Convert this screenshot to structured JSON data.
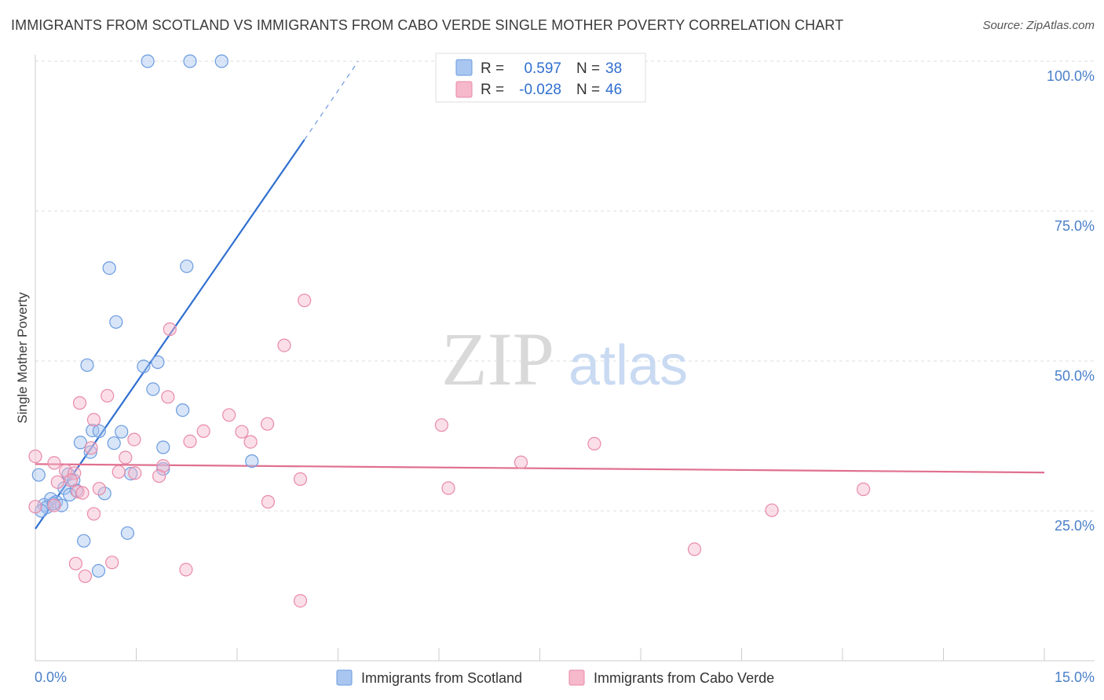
{
  "title": "IMMIGRANTS FROM SCOTLAND VS IMMIGRANTS FROM CABO VERDE SINGLE MOTHER POVERTY CORRELATION CHART",
  "source": "Source: ZipAtlas.com",
  "watermark": {
    "zip": "ZIP",
    "atlas": "atlas"
  },
  "legend": {
    "r_label": "R =",
    "n_label": "N =",
    "rows": [
      {
        "r": "0.597",
        "n": "38",
        "color": "#a9c6f0"
      },
      {
        "r": "-0.028",
        "n": "46",
        "color": "#f6b8cb"
      }
    ]
  },
  "chart_data": {
    "type": "scatter",
    "ylabel": "Single Mother Poverty",
    "xlabel": "",
    "xlim": [
      0,
      15
    ],
    "ylim": [
      0,
      104
    ],
    "x_tick_labels": {
      "left": "0.0%",
      "right": "15.0%"
    },
    "y_ticks": [
      {
        "value": 25,
        "label": "25.0%"
      },
      {
        "value": 50,
        "label": "50.0%"
      },
      {
        "value": 75,
        "label": "75.0%"
      },
      {
        "value": 100,
        "label": "100.0%"
      }
    ],
    "grid": true,
    "legend_position": "top-center",
    "series": [
      {
        "name": "Immigrants from Scotland",
        "color": "#a9c6f0",
        "stroke": "#6a9be0",
        "trend_color": "#2f6fd0",
        "trend": {
          "x0": 0.0,
          "y0": 22.0,
          "x1": 4.0,
          "y1": 86.9,
          "dash_to_x": 4.8,
          "dash_to_y": 100
        },
        "points": [
          [
            1.67,
            100
          ],
          [
            2.3,
            100
          ],
          [
            2.77,
            100
          ],
          [
            1.1,
            65.5
          ],
          [
            2.25,
            65.8
          ],
          [
            1.2,
            56.5
          ],
          [
            0.77,
            49.3
          ],
          [
            1.61,
            49.1
          ],
          [
            1.82,
            49.8
          ],
          [
            1.75,
            45.3
          ],
          [
            2.19,
            41.8
          ],
          [
            0.85,
            38.4
          ],
          [
            0.95,
            38.3
          ],
          [
            1.28,
            38.2
          ],
          [
            0.67,
            36.4
          ],
          [
            1.17,
            36.3
          ],
          [
            1.9,
            35.6
          ],
          [
            0.82,
            34.8
          ],
          [
            3.22,
            33.3
          ],
          [
            1.9,
            32.0
          ],
          [
            1.42,
            31.2
          ],
          [
            0.49,
            31.1
          ],
          [
            0.57,
            30.1
          ],
          [
            0.43,
            28.8
          ],
          [
            0.61,
            28.4
          ],
          [
            0.51,
            27.7
          ],
          [
            1.03,
            27.9
          ],
          [
            0.23,
            27.0
          ],
          [
            0.31,
            26.5
          ],
          [
            0.13,
            26.0
          ],
          [
            0.17,
            25.6
          ],
          [
            0.39,
            25.9
          ],
          [
            0.09,
            25.0
          ],
          [
            0.72,
            20.0
          ],
          [
            1.37,
            21.3
          ],
          [
            0.94,
            15.0
          ],
          [
            0.05,
            31.0
          ],
          [
            0.27,
            26.2
          ]
        ]
      },
      {
        "name": "Immigrants from Cabo Verde",
        "color": "#f6b8cb",
        "stroke": "#e889a8",
        "trend_color": "#e0708f",
        "trend": {
          "x0": 0.0,
          "y0": 32.8,
          "x1": 15.0,
          "y1": 31.4
        },
        "points": [
          [
            4.0,
            60.1
          ],
          [
            2.0,
            55.3
          ],
          [
            3.7,
            52.6
          ],
          [
            1.07,
            44.2
          ],
          [
            0.66,
            43.0
          ],
          [
            1.97,
            44.0
          ],
          [
            0.87,
            40.2
          ],
          [
            2.88,
            41.0
          ],
          [
            3.45,
            39.5
          ],
          [
            6.04,
            39.3
          ],
          [
            2.5,
            38.3
          ],
          [
            3.07,
            38.2
          ],
          [
            1.47,
            36.9
          ],
          [
            2.3,
            36.6
          ],
          [
            3.2,
            36.5
          ],
          [
            8.31,
            36.2
          ],
          [
            0.83,
            35.5
          ],
          [
            0.0,
            34.1
          ],
          [
            1.34,
            33.9
          ],
          [
            0.28,
            33.0
          ],
          [
            7.22,
            33.1
          ],
          [
            1.9,
            32.5
          ],
          [
            0.45,
            31.7
          ],
          [
            1.24,
            31.5
          ],
          [
            1.48,
            31.3
          ],
          [
            0.58,
            31.3
          ],
          [
            1.84,
            30.8
          ],
          [
            3.94,
            30.3
          ],
          [
            0.33,
            29.8
          ],
          [
            0.53,
            30.1
          ],
          [
            0.63,
            28.2
          ],
          [
            0.95,
            28.7
          ],
          [
            6.14,
            28.8
          ],
          [
            12.31,
            28.6
          ],
          [
            0.7,
            28.0
          ],
          [
            3.46,
            26.5
          ],
          [
            0.28,
            25.9
          ],
          [
            0.0,
            25.7
          ],
          [
            10.95,
            25.1
          ],
          [
            0.87,
            24.5
          ],
          [
            9.8,
            18.6
          ],
          [
            0.6,
            16.2
          ],
          [
            1.14,
            16.4
          ],
          [
            2.24,
            15.2
          ],
          [
            0.74,
            14.1
          ],
          [
            3.94,
            10.0
          ]
        ]
      }
    ]
  }
}
